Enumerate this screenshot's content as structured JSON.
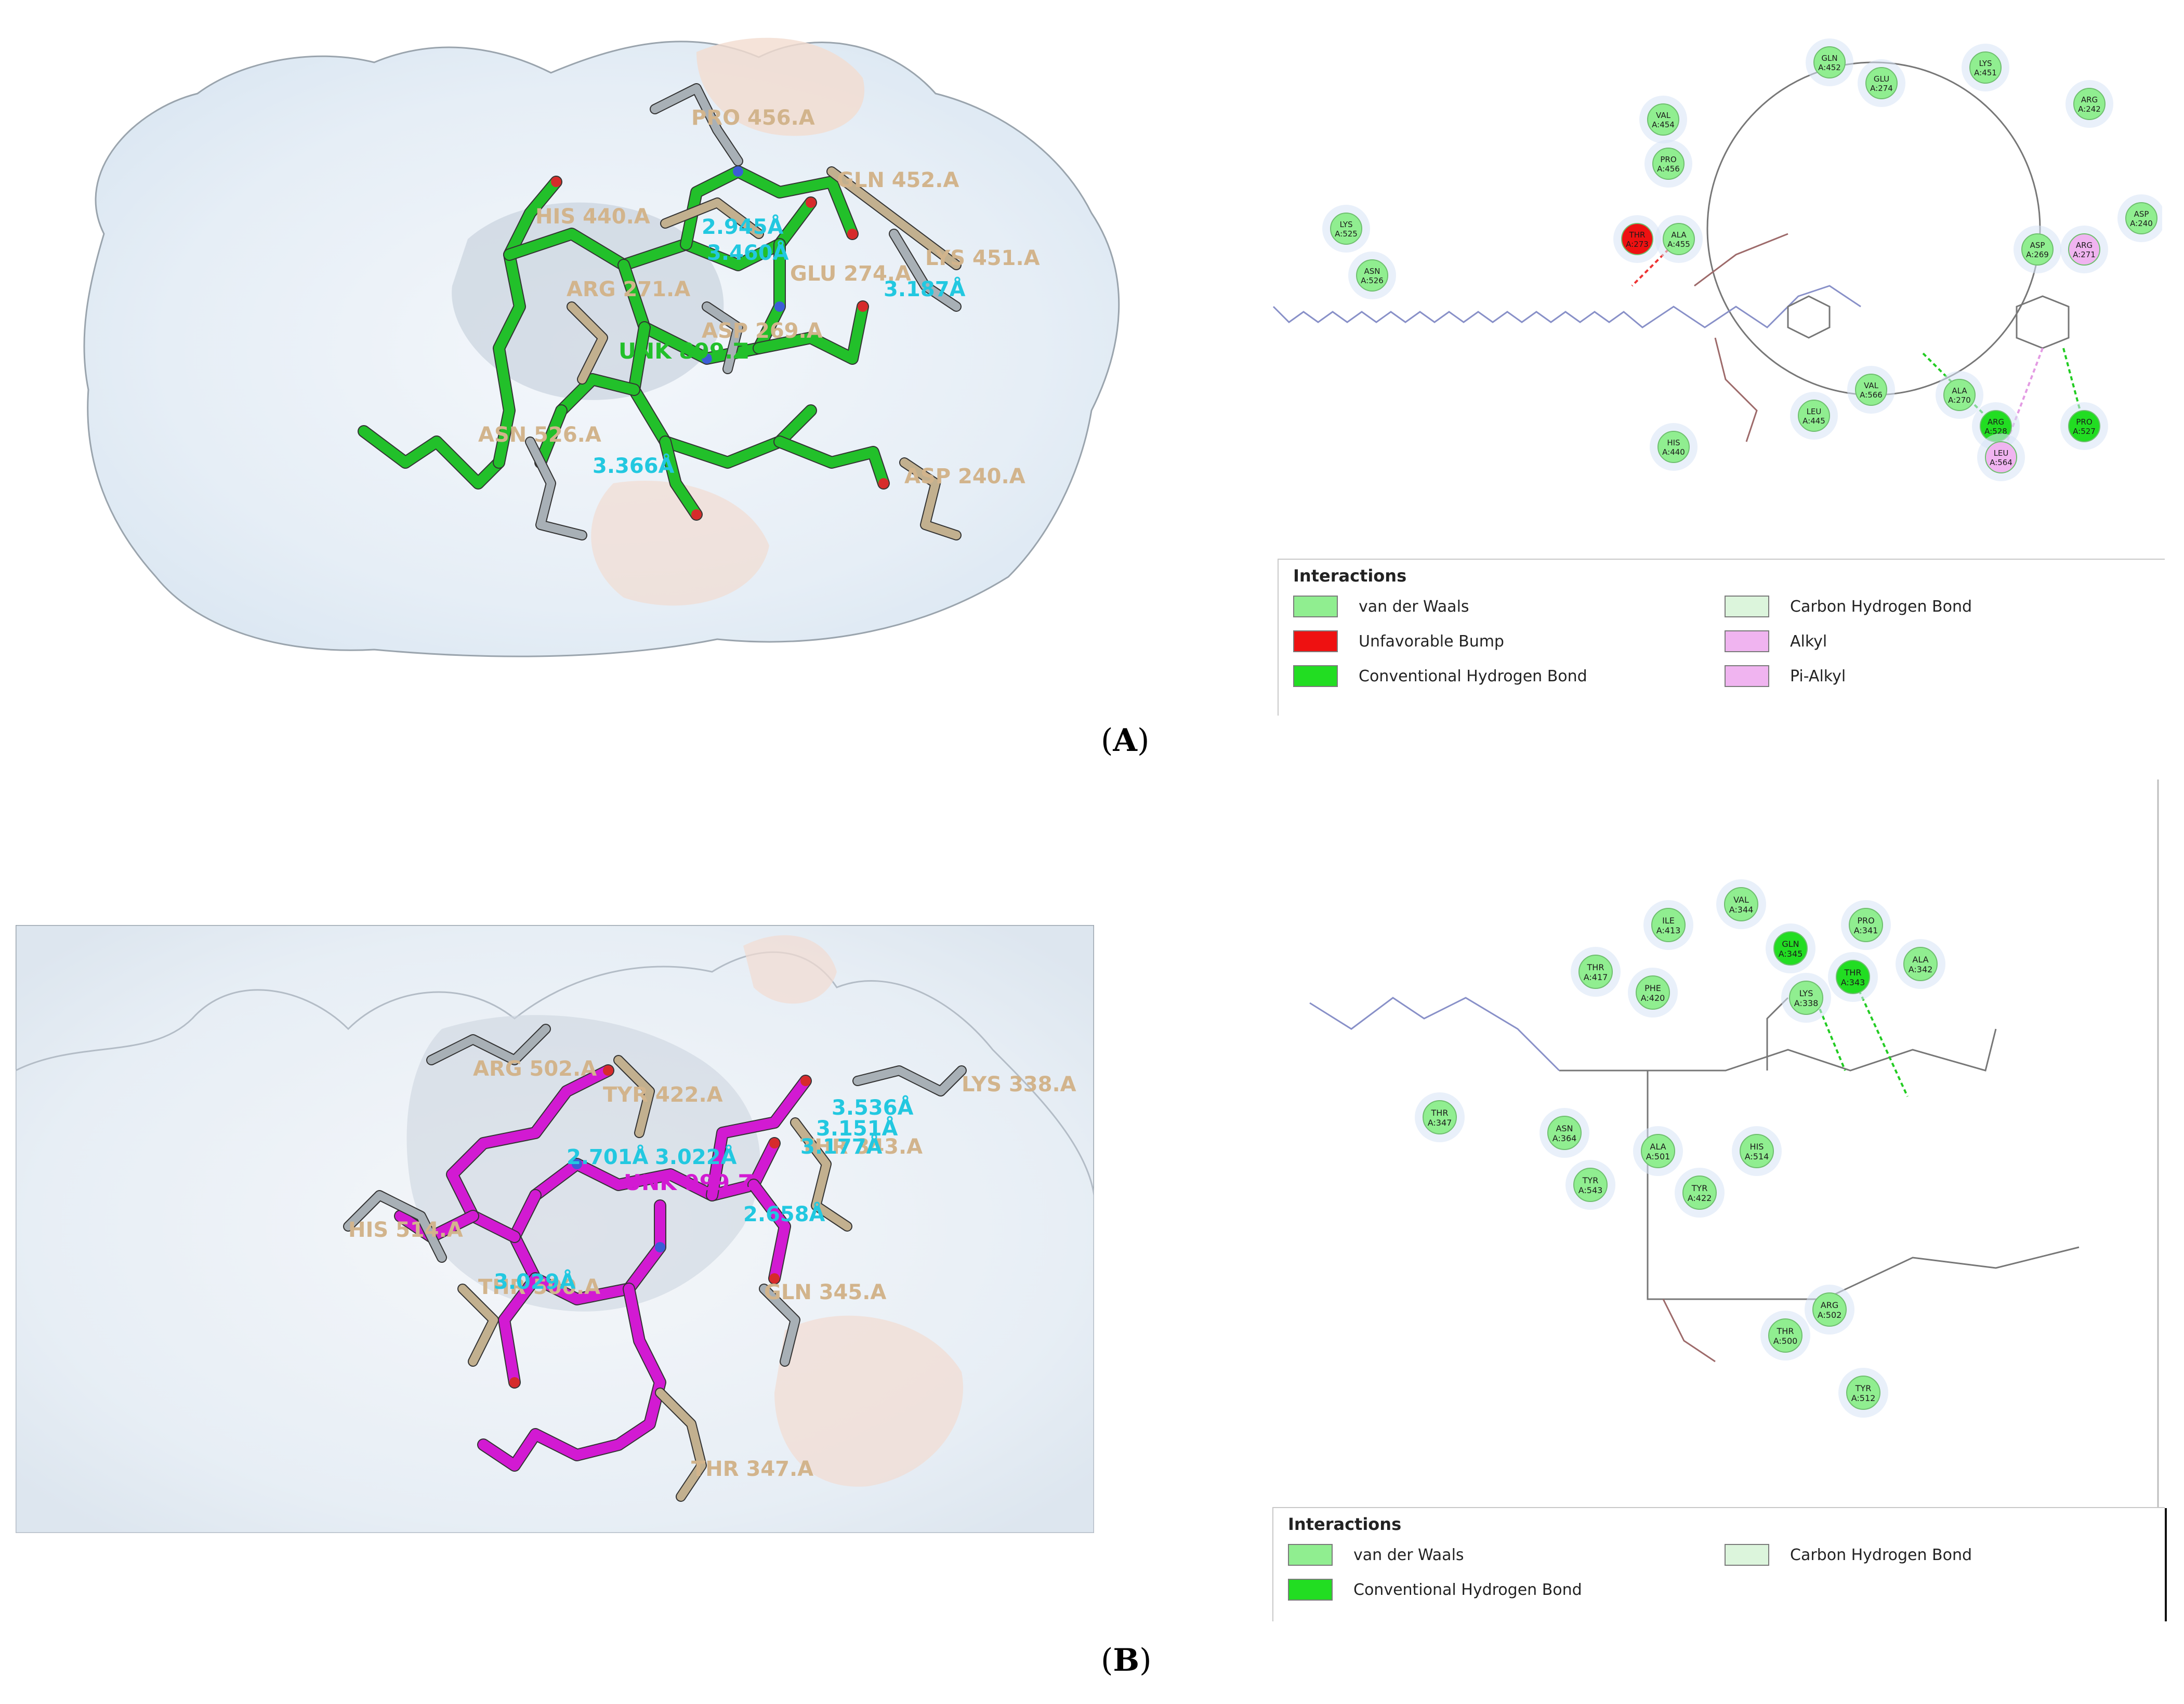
{
  "panels": [
    {
      "label": "A",
      "view3d": {
        "ligand_color": "#22c02a",
        "ligand_label": "UNK 899.Z",
        "residue_labels": [
          "PRO 456.A",
          "GLN 452.A",
          "HIS 440.A",
          "LYS 451.A",
          "ARG 271.A",
          "GLU 274.A",
          "ASP 269.A",
          "ASN 526.A",
          "ASP 240.A"
        ],
        "distances": [
          "2.945Å",
          "3.460Å",
          "3.187Å",
          "3.366Å"
        ]
      },
      "diagram": {
        "residues": [
          {
            "name": "GLN",
            "id": "A:452",
            "type": "vdw"
          },
          {
            "name": "GLU",
            "id": "A:274",
            "type": "vdw"
          },
          {
            "name": "LYS",
            "id": "A:451",
            "type": "vdw"
          },
          {
            "name": "ARG",
            "id": "A:242",
            "type": "vdw"
          },
          {
            "name": "VAL",
            "id": "A:454",
            "type": "vdw"
          },
          {
            "name": "PRO",
            "id": "A:456",
            "type": "vdw"
          },
          {
            "name": "LYS",
            "id": "A:525",
            "type": "vdw"
          },
          {
            "name": "ASN",
            "id": "A:526",
            "type": "vdw"
          },
          {
            "name": "THR",
            "id": "A:273",
            "type": "bump"
          },
          {
            "name": "ALA",
            "id": "A:455",
            "type": "vdw"
          },
          {
            "name": "ASP",
            "id": "A:269",
            "type": "vdw"
          },
          {
            "name": "ARG",
            "id": "A:271",
            "type": "alkyl"
          },
          {
            "name": "ASP",
            "id": "A:240",
            "type": "vdw"
          },
          {
            "name": "VAL",
            "id": "A:566",
            "type": "vdw"
          },
          {
            "name": "ALA",
            "id": "A:270",
            "type": "vdw"
          },
          {
            "name": "LEU",
            "id": "A:445",
            "type": "vdw"
          },
          {
            "name": "HIS",
            "id": "A:440",
            "type": "vdw"
          },
          {
            "name": "ARG",
            "id": "A:528",
            "type": "hbond"
          },
          {
            "name": "PRO",
            "id": "A:527",
            "type": "hbond"
          },
          {
            "name": "LEU",
            "id": "A:564",
            "type": "pialkyl"
          }
        ]
      },
      "legend": {
        "title": "Interactions",
        "items": [
          {
            "label": "van der Waals",
            "color": "#90ee90"
          },
          {
            "label": "Unfavorable Bump",
            "color": "#ee1111"
          },
          {
            "label": "Conventional Hydrogen Bond",
            "color": "#22dd22"
          },
          {
            "label": "Carbon Hydrogen Bond",
            "color": "#dcf5dc"
          },
          {
            "label": "Alkyl",
            "color": "#f0b4f0"
          },
          {
            "label": "Pi-Alkyl",
            "color": "#f0b4f0"
          }
        ]
      }
    },
    {
      "label": "B",
      "view3d": {
        "ligand_color": "#d21ad2",
        "ligand_label": "UNK 999.Z",
        "residue_labels": [
          "ARG 502.A",
          "TYR 422.A",
          "LYS 338.A",
          "THR 343.A",
          "HIS 514.A",
          "THR 500.A",
          "GLN 345.A",
          "THR 347.A"
        ],
        "distances": [
          "3.536Å",
          "3.151Å",
          "3.177Å",
          "2.701Å",
          "3.022Å",
          "2.658Å",
          "3.029Å"
        ]
      },
      "diagram": {
        "residues": [
          {
            "name": "VAL",
            "id": "A:344",
            "type": "vdw"
          },
          {
            "name": "ILE",
            "id": "A:413",
            "type": "vdw"
          },
          {
            "name": "GLN",
            "id": "A:345",
            "type": "hbond"
          },
          {
            "name": "PRO",
            "id": "A:341",
            "type": "vdw"
          },
          {
            "name": "THR",
            "id": "A:417",
            "type": "vdw"
          },
          {
            "name": "PHE",
            "id": "A:420",
            "type": "vdw"
          },
          {
            "name": "LYS",
            "id": "A:338",
            "type": "vdw"
          },
          {
            "name": "THR",
            "id": "A:343",
            "type": "hbond"
          },
          {
            "name": "ALA",
            "id": "A:342",
            "type": "vdw"
          },
          {
            "name": "THR",
            "id": "A:347",
            "type": "vdw"
          },
          {
            "name": "ASN",
            "id": "A:364",
            "type": "vdw"
          },
          {
            "name": "ALA",
            "id": "A:501",
            "type": "vdw"
          },
          {
            "name": "HIS",
            "id": "A:514",
            "type": "vdw"
          },
          {
            "name": "TYR",
            "id": "A:543",
            "type": "vdw"
          },
          {
            "name": "TYR",
            "id": "A:422",
            "type": "vdw"
          },
          {
            "name": "ARG",
            "id": "A:502",
            "type": "vdw"
          },
          {
            "name": "THR",
            "id": "A:500",
            "type": "vdw"
          },
          {
            "name": "TYR",
            "id": "A:512",
            "type": "vdw"
          }
        ]
      },
      "legend": {
        "title": "Interactions",
        "items": [
          {
            "label": "van der Waals",
            "color": "#90ee90"
          },
          {
            "label": "Conventional Hydrogen Bond",
            "color": "#22dd22"
          },
          {
            "label": "Carbon Hydrogen Bond",
            "color": "#dcf5dc"
          }
        ]
      }
    }
  ],
  "colors": {
    "residue_text": "#d2b48c",
    "distance_text": "#22c8e0",
    "vdw": "#90ee90",
    "hbond": "#22dd22",
    "bump": "#ee1111",
    "alkyl": "#f0b4f0",
    "pialkyl": "#f0b4f0",
    "surface": "#eef2f7"
  }
}
